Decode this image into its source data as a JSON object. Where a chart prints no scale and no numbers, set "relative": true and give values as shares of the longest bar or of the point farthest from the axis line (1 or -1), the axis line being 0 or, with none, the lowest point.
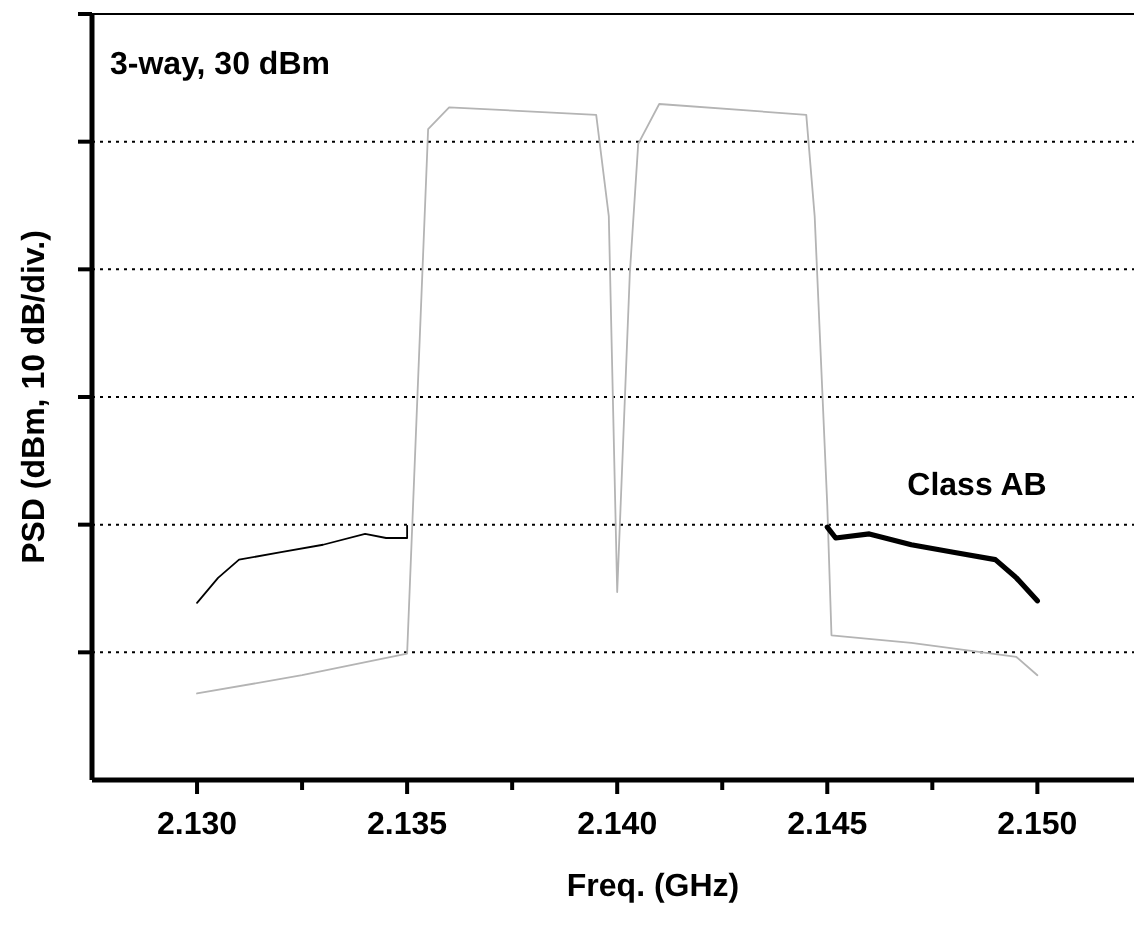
{
  "chart_data": {
    "type": "line",
    "xlabel": "Freq. (GHz)",
    "ylabel": "PSD (dBm, 10 dB/div.)",
    "relative": true,
    "annotations": [
      "3-way, 30 dBm"
    ],
    "xlim": [
      2.1275,
      2.1523
    ],
    "xticks": [
      {
        "value": 2.13,
        "label": "2.130"
      },
      {
        "value": 2.1325,
        "label": null
      },
      2.135,
      {
        "value": 2.1375,
        "label": null
      },
      {
        "value": 2.14,
        "label": "2.140"
      },
      {
        "value": 2.1425,
        "label": null
      },
      2.145,
      {
        "value": 2.1475,
        "label": null
      },
      {
        "value": 2.15,
        "label": "2.150"
      }
    ],
    "tick_labels": "x",
    "grid": "y",
    "line_style": "solid",
    "marker": "none",
    "series": [
      {
        "color": "#b4b4b4",
        "x": [
          2.13,
          2.1325,
          2.135,
          2.1355,
          2.136,
          2.1395,
          2.1398,
          2.14,
          2.1403,
          2.1405,
          2.141,
          2.1445,
          2.1447,
          2.145,
          2.1451,
          2.147,
          2.1495,
          2.15
        ],
        "values": [
          0.128,
          0.155,
          0.187,
          0.963,
          0.995,
          0.984,
          0.834,
          0.278,
          0.749,
          0.941,
          1,
          0.984,
          0.834,
          0.406,
          0.214,
          0.203,
          0.182,
          0.155
        ]
      },
      {
        "color": "#000000",
        "x": [
          2.13,
          2.1305,
          2.131,
          2.132,
          2.133,
          2.134,
          2.1345,
          2.135,
          2.135
        ],
        "values": [
          0.262,
          0.299,
          0.326,
          0.337,
          0.348,
          0.364,
          0.358,
          0.358,
          0.376
        ]
      },
      {
        "name": "Class AB",
        "color": "#000000",
        "x": [
          2.145,
          2.1452,
          2.146,
          2.147,
          2.148,
          2.149,
          2.1495,
          2.15
        ],
        "values": [
          0.374,
          0.358,
          0.364,
          0.348,
          0.337,
          0.326,
          0.299,
          0.265
        ]
      }
    ]
  }
}
